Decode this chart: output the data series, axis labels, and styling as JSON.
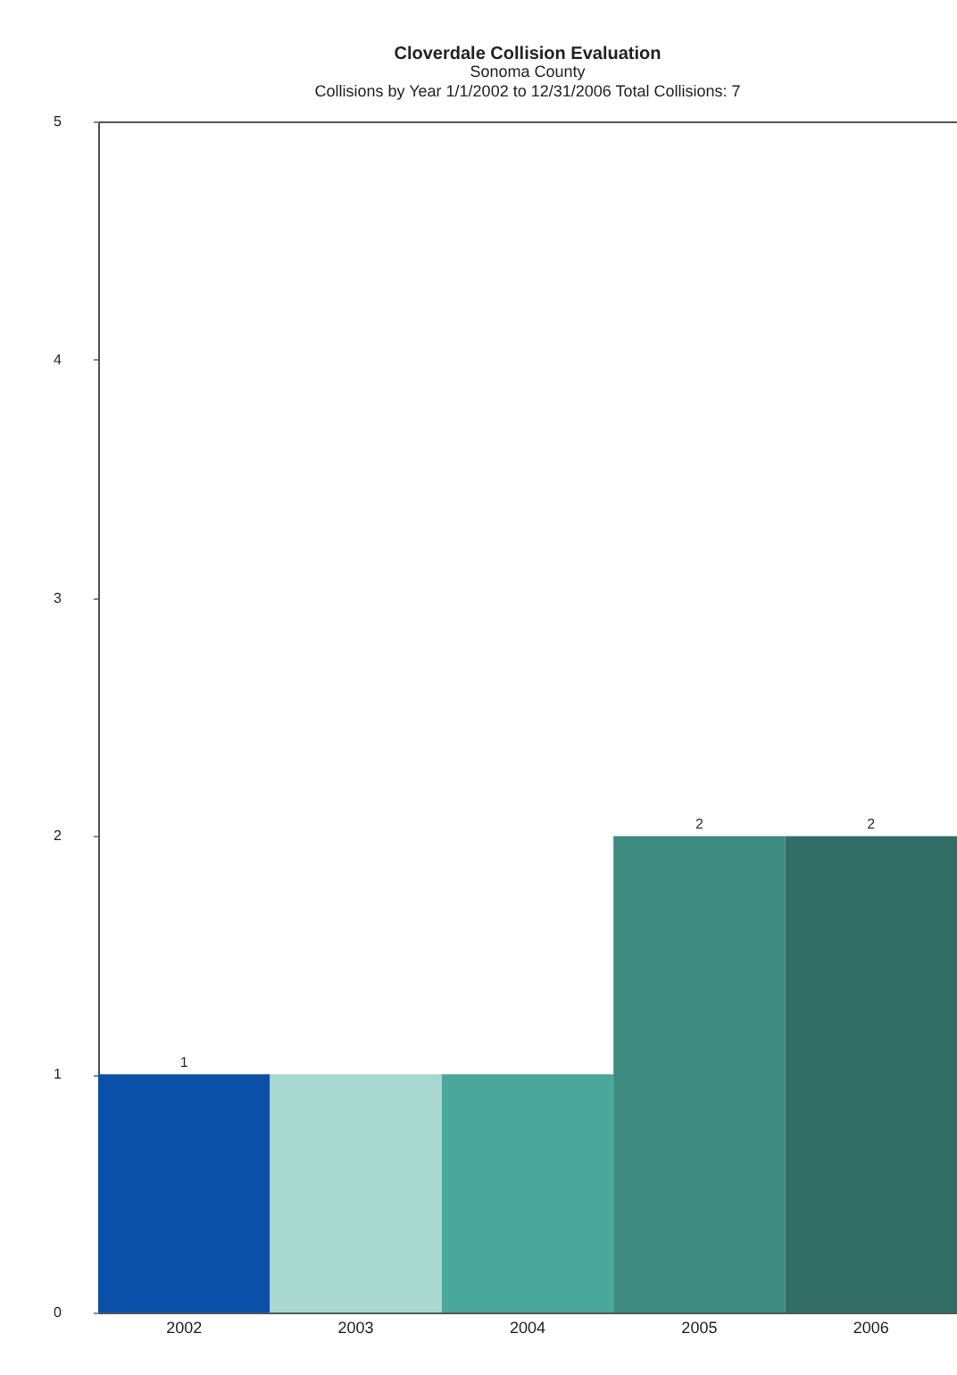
{
  "chart_data": {
    "type": "bar",
    "title": "Cloverdale Collision Evaluation",
    "subtitle": "Sonoma County",
    "annotations": [
      "Collisions by Year    1/1/2002 to 12/31/2006    Total Collisions: 7"
    ],
    "categories": [
      "2002",
      "2003",
      "2004",
      "2005",
      "2006"
    ],
    "values": [
      1,
      1,
      1,
      2,
      2
    ],
    "colors": [
      "#0a4fa8",
      "#a8d8d0",
      "#4aa89a",
      "#3d8a80",
      "#336e66"
    ],
    "value_labels": [
      "1",
      null,
      null,
      "2",
      "2"
    ],
    "ylim": [
      0,
      5
    ],
    "yticks": [
      0,
      1,
      2,
      3,
      4,
      5
    ],
    "grid": false
  }
}
